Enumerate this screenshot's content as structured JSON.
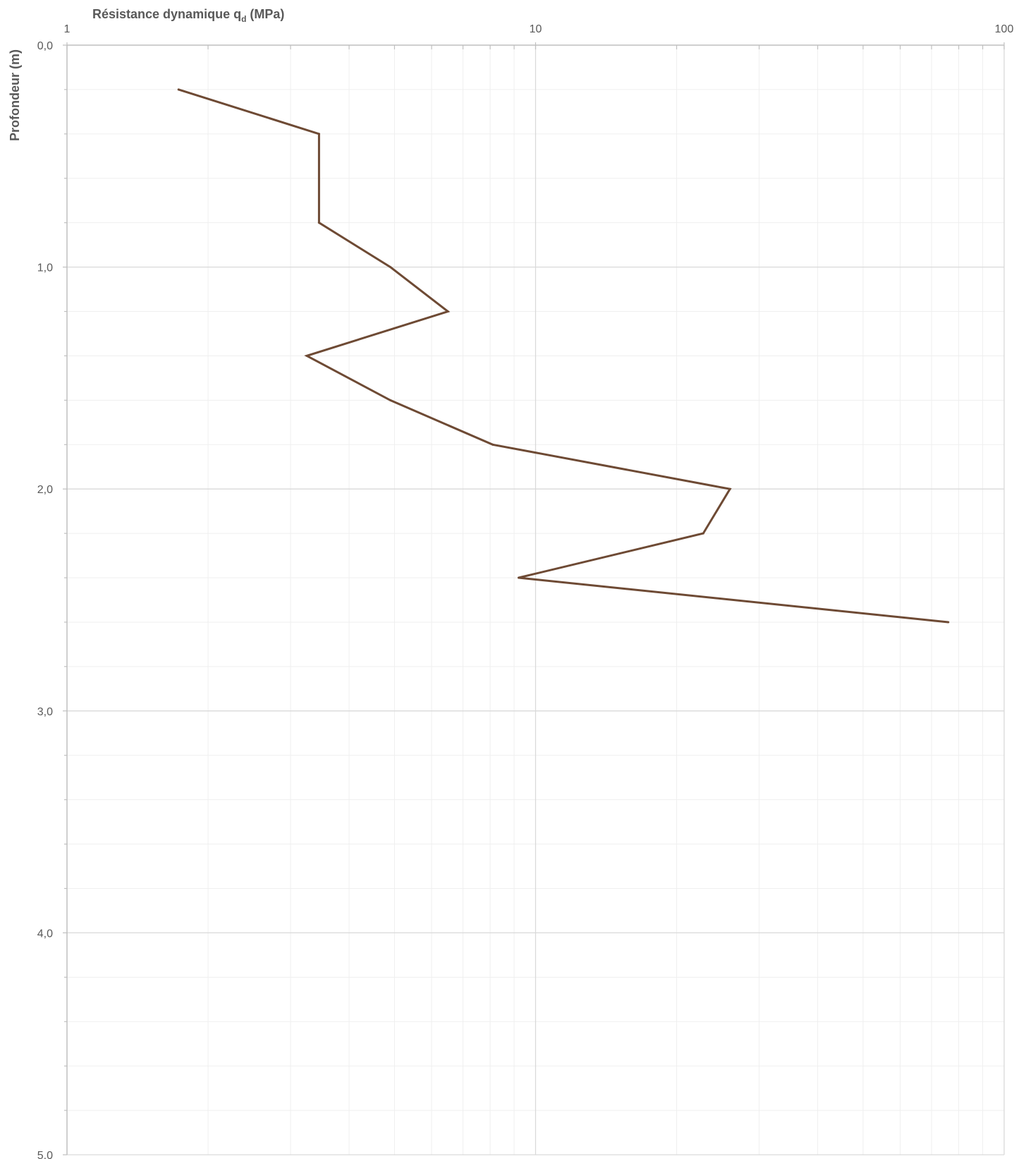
{
  "chart_data": {
    "type": "line",
    "title": "",
    "xlabel": {
      "main": "Résistance dynamique q",
      "subscript": "d",
      "suffix": " (MPa)"
    },
    "ylabel": "Profondeur (m)",
    "x_scale": "log",
    "xlim": [
      1,
      100
    ],
    "ylim": [
      0,
      5
    ],
    "y_inverted": true,
    "x_axis_position": "top",
    "x_tick_labels": [
      "1",
      "10",
      "100"
    ],
    "y_tick_labels": [
      "0,0",
      "1,0",
      "2,0",
      "3,0",
      "4,0",
      "5,0"
    ],
    "grid": true,
    "series": [
      {
        "color": "#6e4a34",
        "points": [
          {
            "x": 1.73,
            "y": 0.2
          },
          {
            "x": 3.45,
            "y": 0.4
          },
          {
            "x": 3.45,
            "y": 0.8
          },
          {
            "x": 4.9,
            "y": 1.0
          },
          {
            "x": 6.5,
            "y": 1.2
          },
          {
            "x": 3.25,
            "y": 1.4
          },
          {
            "x": 4.9,
            "y": 1.6
          },
          {
            "x": 8.1,
            "y": 1.8
          },
          {
            "x": 26.0,
            "y": 2.0
          },
          {
            "x": 22.8,
            "y": 2.2
          },
          {
            "x": 9.2,
            "y": 2.4
          },
          {
            "x": 76.0,
            "y": 2.6
          }
        ]
      }
    ]
  }
}
